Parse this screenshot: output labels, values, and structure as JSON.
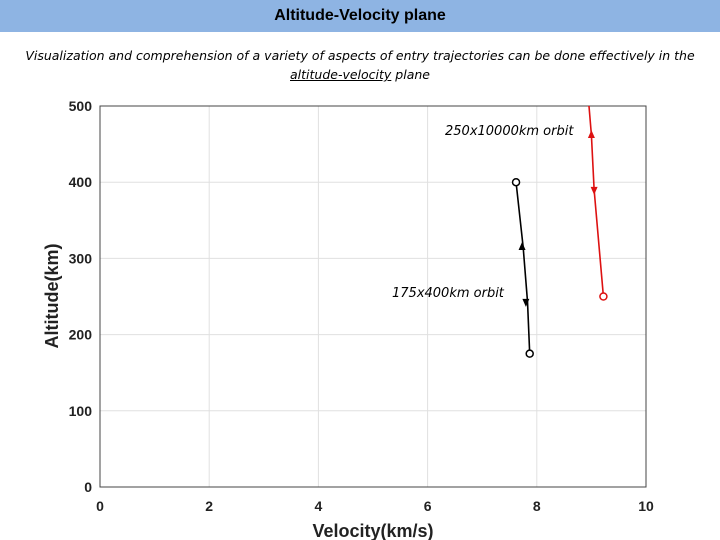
{
  "header": {
    "title": "Altitude-Velocity plane"
  },
  "subtitle": {
    "line1": "Visualization and comprehension of a variety of aspects of entry trajectories can be done effectively in the",
    "line2_underlined": "altitude-velocity",
    "line2_rest": " plane"
  },
  "chart_data": {
    "type": "line",
    "xlabel": "Velocity(km/s)",
    "ylabel": "Altitude(km)",
    "xlim": [
      0,
      10
    ],
    "ylim": [
      0,
      500
    ],
    "xticks": [
      "0",
      "2",
      "4",
      "6",
      "8",
      "10"
    ],
    "yticks": [
      "0",
      "100",
      "200",
      "300",
      "400",
      "500"
    ],
    "grid": true,
    "series": [
      {
        "label": "175x400km orbit",
        "color": "#000000",
        "points": [
          [
            7.62,
            400
          ],
          [
            7.75,
            315
          ],
          [
            7.83,
            243
          ],
          [
            7.87,
            175
          ]
        ],
        "start": [
          7.62,
          400
        ],
        "end": [
          7.87,
          175
        ],
        "arrows": [
          [
            7.73,
            315,
            "up"
          ],
          [
            7.8,
            243,
            "down"
          ]
        ]
      },
      {
        "label": "250x10000km orbit",
        "color": "#dd1111",
        "points": [
          [
            8.95,
            505
          ],
          [
            9.0,
            462
          ],
          [
            9.05,
            390
          ],
          [
            9.22,
            250
          ]
        ],
        "start": [
          8.95,
          505
        ],
        "end": [
          9.22,
          250
        ],
        "arrows": [
          [
            9.0,
            462,
            "up"
          ],
          [
            9.05,
            390,
            "down"
          ]
        ]
      }
    ]
  }
}
